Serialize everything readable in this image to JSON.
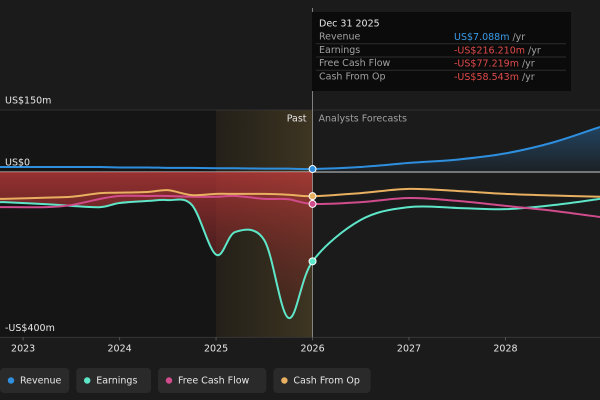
{
  "chart_data": {
    "type": "line",
    "past_label": "Past",
    "forecast_label": "Analysts Forecasts",
    "divider": 2026,
    "past_start": 2025,
    "tooltip": {
      "date": "Dec 31 2025",
      "rows": [
        {
          "name": "Revenue",
          "value": "US$7.088m",
          "unit": "/yr"
        },
        {
          "name": "Earnings",
          "value": "-US$216.210m",
          "unit": "/yr"
        },
        {
          "name": "Free Cash Flow",
          "value": "-US$77.219m",
          "unit": "/yr"
        },
        {
          "name": "Cash From Op",
          "value": "-US$58.543m",
          "unit": "/yr"
        }
      ]
    },
    "x": [
      2022.8,
      2023.25,
      2023.5,
      2023.8,
      2024,
      2024.3,
      2024.5,
      2024.75,
      2025,
      2025.2,
      2025.5,
      2025.75,
      2026,
      2026.5,
      2027,
      2027.5,
      2028,
      2028.5,
      2028.98
    ],
    "xlim": [
      2022.76,
      2028.98
    ],
    "xticks": [
      2023,
      2024,
      2025,
      2026,
      2027,
      2028
    ],
    "ylim": [
      -400,
      150
    ],
    "yticks": [
      {
        "value": 150,
        "label": "US$150m"
      },
      {
        "value": 0,
        "label": "US$0"
      },
      {
        "value": -400,
        "label": "-US$400m"
      }
    ],
    "series": [
      {
        "name": "Revenue",
        "color": "#2f8fdf",
        "values": [
          12,
          12,
          12,
          12,
          11,
          11,
          10,
          10,
          9,
          9,
          8,
          8,
          7.088,
          12,
          22,
          30,
          45,
          72,
          109
        ]
      },
      {
        "name": "Earnings",
        "color": "#5ee6c8",
        "values": [
          -73,
          -78,
          -82,
          -85,
          -75,
          -70,
          -68,
          -80,
          -200,
          -145,
          -165,
          -353,
          -216.21,
          -116,
          -85,
          -87,
          -90,
          -80,
          -65
        ]
      },
      {
        "name": "Free Cash Flow",
        "color": "#d04c8c",
        "values": [
          -85,
          -85,
          -80,
          -65,
          -58,
          -58,
          -58,
          -60,
          -60,
          -58,
          -65,
          -66,
          -77.219,
          -73,
          -63,
          -70,
          -82,
          -94,
          -109
        ]
      },
      {
        "name": "Cash From Op",
        "color": "#e8b060",
        "values": [
          -65,
          -62,
          -60,
          -51,
          -50,
          -48,
          -44,
          -56,
          -53,
          -53,
          -53,
          -55,
          -58.543,
          -51,
          -41,
          -46,
          -53,
          -57,
          -60
        ]
      }
    ]
  }
}
